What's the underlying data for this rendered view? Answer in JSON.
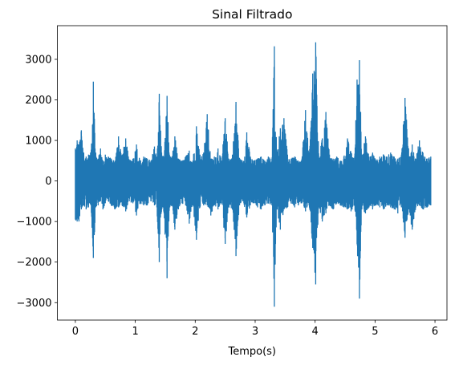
{
  "chart_data": {
    "type": "line",
    "title": "Sinal Filtrado",
    "xlabel": "Tempo(s)",
    "ylabel": "",
    "xlim": [
      -0.3,
      6.2
    ],
    "ylim": [
      -3430,
      3830
    ],
    "x_ticks": [
      0,
      1,
      2,
      3,
      4,
      5,
      6
    ],
    "x_tick_labels": [
      "0",
      "1",
      "2",
      "3",
      "4",
      "5",
      "6"
    ],
    "y_ticks": [
      -3000,
      -2000,
      -1000,
      0,
      1000,
      2000,
      3000
    ],
    "y_tick_labels": [
      "−3000",
      "−2000",
      "−1000",
      "0",
      "1000",
      "2000",
      "3000"
    ],
    "grid": false,
    "legend": "none",
    "colors": {
      "line": "#1f77b4",
      "axes": "#000000",
      "background": "#ffffff"
    },
    "series": [
      {
        "x_range": [
          0,
          5.93
        ],
        "envelope": {
          "x": [
            0.0,
            0.03,
            0.06,
            0.1,
            0.14,
            0.18,
            0.22,
            0.26,
            0.3,
            0.34,
            0.38,
            0.42,
            0.46,
            0.5,
            0.55,
            0.6,
            0.66,
            0.72,
            0.78,
            0.84,
            0.9,
            0.96,
            1.02,
            1.08,
            1.14,
            1.2,
            1.26,
            1.32,
            1.36,
            1.4,
            1.44,
            1.48,
            1.53,
            1.57,
            1.61,
            1.66,
            1.72,
            1.78,
            1.84,
            1.9,
            1.96,
            2.02,
            2.08,
            2.14,
            2.2,
            2.26,
            2.32,
            2.38,
            2.44,
            2.5,
            2.56,
            2.62,
            2.68,
            2.74,
            2.8,
            2.86,
            2.92,
            2.98,
            3.04,
            3.1,
            3.16,
            3.22,
            3.28,
            3.32,
            3.36,
            3.42,
            3.48,
            3.54,
            3.6,
            3.66,
            3.72,
            3.78,
            3.84,
            3.9,
            3.96,
            4.01,
            4.06,
            4.12,
            4.18,
            4.24,
            4.3,
            4.36,
            4.42,
            4.48,
            4.54,
            4.6,
            4.66,
            4.7,
            4.74,
            4.78,
            4.84,
            4.9,
            4.96,
            5.02,
            5.08,
            5.14,
            5.2,
            5.26,
            5.32,
            5.38,
            5.44,
            5.5,
            5.56,
            5.62,
            5.68,
            5.74,
            5.8,
            5.86,
            5.93
          ],
          "upper": [
            800,
            1000,
            900,
            1250,
            700,
            600,
            650,
            700,
            2450,
            700,
            550,
            800,
            500,
            650,
            600,
            550,
            500,
            1100,
            650,
            1050,
            500,
            550,
            900,
            500,
            600,
            550,
            500,
            850,
            600,
            2150,
            700,
            600,
            2100,
            650,
            550,
            1100,
            550,
            500,
            600,
            750,
            500,
            1350,
            650,
            700,
            1650,
            550,
            600,
            800,
            500,
            1550,
            550,
            650,
            1950,
            550,
            500,
            1200,
            600,
            500,
            550,
            600,
            500,
            600,
            550,
            3320,
            700,
            1300,
            1550,
            650,
            550,
            600,
            500,
            550,
            1750,
            600,
            2650,
            3420,
            650,
            1050,
            1700,
            650,
            550,
            600,
            500,
            600,
            1050,
            700,
            600,
            2500,
            2980,
            650,
            1100,
            600,
            700,
            500,
            600,
            650,
            600,
            700,
            600,
            550,
            650,
            2050,
            800,
            900,
            550,
            1000,
            700,
            550,
            600
          ],
          "lower": [
            -950,
            -1000,
            -1000,
            -700,
            -600,
            -700,
            -650,
            -600,
            -1900,
            -650,
            -600,
            -500,
            -700,
            -550,
            -500,
            -600,
            -700,
            -650,
            -600,
            -750,
            -500,
            -550,
            -850,
            -550,
            -600,
            -600,
            -500,
            -600,
            -650,
            -2000,
            -700,
            -800,
            -2400,
            -650,
            -600,
            -1200,
            -700,
            -550,
            -600,
            -1050,
            -600,
            -1450,
            -650,
            -600,
            -600,
            -850,
            -600,
            -700,
            -550,
            -1550,
            -650,
            -700,
            -1850,
            -600,
            -500,
            -900,
            -600,
            -550,
            -650,
            -700,
            -600,
            -550,
            -600,
            -3100,
            -700,
            -1200,
            -700,
            -650,
            -550,
            -650,
            -600,
            -550,
            -750,
            -600,
            -1650,
            -2550,
            -650,
            -1000,
            -800,
            -600,
            -700,
            -550,
            -600,
            -650,
            -700,
            -750,
            -600,
            -1550,
            -2900,
            -700,
            -800,
            -650,
            -700,
            -600,
            -650,
            -700,
            -600,
            -650,
            -700,
            -800,
            -650,
            -1400,
            -700,
            -1200,
            -650,
            -600,
            -700,
            -650,
            -600
          ]
        }
      }
    ]
  }
}
